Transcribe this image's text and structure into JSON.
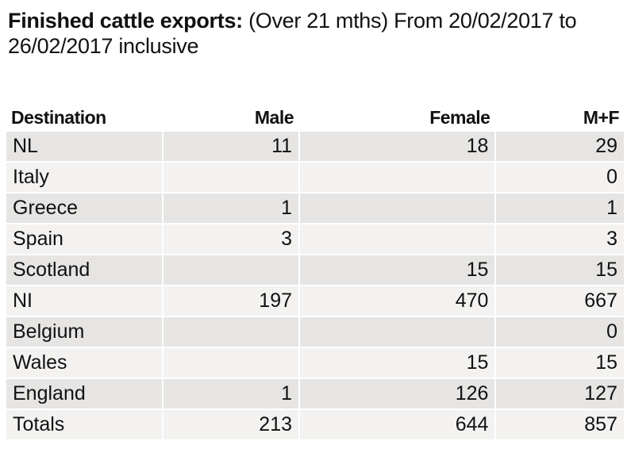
{
  "title": {
    "bold": "Finished cattle exports:",
    "rest": " (Over 21 mths) From 20/02/2017 to 26/02/2017 inclusive"
  },
  "headers": [
    "Destination",
    "Male",
    "Female",
    "M+F"
  ],
  "rows": [
    [
      "NL",
      "11",
      "18",
      "29"
    ],
    [
      "Italy",
      "",
      "",
      "0"
    ],
    [
      "Greece",
      "1",
      "",
      "1"
    ],
    [
      "Spain",
      "3",
      "",
      "3"
    ],
    [
      "Scotland",
      "",
      "15",
      "15"
    ],
    [
      "NI",
      "197",
      "470",
      "667"
    ],
    [
      "Belgium",
      "",
      "",
      "0"
    ],
    [
      "Wales",
      "",
      "15",
      "15"
    ],
    [
      "England",
      "1",
      "126",
      "127"
    ],
    [
      "Totals",
      "213",
      "644",
      "857"
    ]
  ]
}
